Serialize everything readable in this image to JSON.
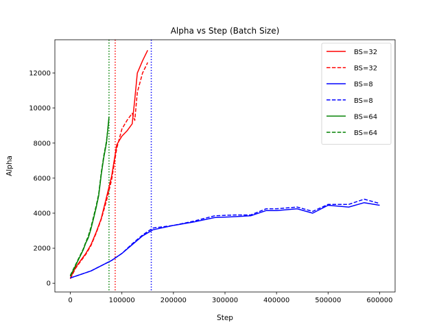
{
  "chart_data": {
    "type": "line",
    "title": "Alpha vs Step (Batch Size)",
    "xlabel": "Step",
    "ylabel": "Alpha",
    "xlim": [
      -30000,
      630000
    ],
    "ylim": [
      -500,
      13900
    ],
    "xticks": [
      0,
      100000,
      200000,
      300000,
      400000,
      500000,
      600000
    ],
    "xtick_labels": [
      "0",
      "100000",
      "200000",
      "300000",
      "400000",
      "500000",
      "600000"
    ],
    "yticks": [
      0,
      2000,
      4000,
      6000,
      8000,
      10000,
      12000
    ],
    "ytick_labels": [
      "0",
      "2000",
      "4000",
      "6000",
      "8000",
      "10000",
      "12000"
    ],
    "grid": false,
    "legend_position": "top-right",
    "series": [
      {
        "name": "BS=32",
        "color": "#ff0000",
        "style": "solid",
        "x": [
          0,
          10000,
          20000,
          30000,
          40000,
          50000,
          60000,
          70000,
          80000,
          90000,
          100000,
          110000,
          120000,
          125000,
          130000,
          140000,
          150000
        ],
        "y": [
          300,
          900,
          1300,
          1700,
          2200,
          2900,
          3700,
          4900,
          6100,
          7900,
          8400,
          8700,
          9100,
          10500,
          12000,
          12700,
          13300
        ]
      },
      {
        "name": "BS=32",
        "color": "#ff0000",
        "style": "dashed",
        "x": [
          0,
          10000,
          20000,
          30000,
          40000,
          50000,
          60000,
          70000,
          80000,
          90000,
          100000,
          110000,
          120000,
          125000,
          130000,
          140000,
          150000
        ],
        "y": [
          250,
          850,
          1250,
          1650,
          2150,
          2850,
          3650,
          4700,
          5900,
          7700,
          8800,
          9300,
          9700,
          9300,
          10900,
          12000,
          12600
        ]
      },
      {
        "name": "BS=8",
        "color": "#0000ff",
        "style": "solid",
        "x": [
          0,
          40000,
          80000,
          100000,
          120000,
          140000,
          160000,
          200000,
          240000,
          280000,
          320000,
          350000,
          380000,
          400000,
          440000,
          470000,
          500000,
          540000,
          570000,
          600000
        ],
        "y": [
          300,
          700,
          1300,
          1700,
          2200,
          2700,
          3050,
          3300,
          3500,
          3750,
          3800,
          3850,
          4150,
          4150,
          4250,
          4000,
          4450,
          4350,
          4600,
          4450
        ]
      },
      {
        "name": "BS=8",
        "color": "#0000ff",
        "style": "dashed",
        "x": [
          0,
          40000,
          80000,
          100000,
          120000,
          140000,
          160000,
          200000,
          240000,
          280000,
          320000,
          350000,
          380000,
          400000,
          440000,
          470000,
          500000,
          540000,
          570000,
          600000
        ],
        "y": [
          300,
          700,
          1300,
          1700,
          2250,
          2750,
          3150,
          3300,
          3550,
          3850,
          3900,
          3900,
          4250,
          4250,
          4350,
          4100,
          4500,
          4500,
          4800,
          4550
        ]
      },
      {
        "name": "BS=64",
        "color": "#008000",
        "style": "solid",
        "x": [
          0,
          5000,
          10000,
          15000,
          20000,
          25000,
          30000,
          35000,
          40000,
          45000,
          50000,
          55000,
          60000,
          65000,
          70000,
          75000
        ],
        "y": [
          400,
          700,
          1000,
          1300,
          1600,
          1900,
          2300,
          2600,
          3100,
          3700,
          4300,
          5000,
          6200,
          7200,
          8000,
          9500
        ]
      },
      {
        "name": "BS=64",
        "color": "#008000",
        "style": "dashed",
        "x": [
          0,
          5000,
          10000,
          15000,
          20000,
          25000,
          30000,
          35000,
          40000,
          45000,
          50000,
          55000,
          60000,
          65000,
          70000,
          75000
        ],
        "y": [
          450,
          750,
          1050,
          1350,
          1650,
          1950,
          2350,
          2700,
          3200,
          3800,
          4400,
          5100,
          6300,
          7300,
          8100,
          9400
        ]
      }
    ],
    "vlines": [
      {
        "x": 75000,
        "color": "#008000",
        "style": "dotted"
      },
      {
        "x": 87000,
        "color": "#ff0000",
        "style": "dotted"
      },
      {
        "x": 157000,
        "color": "#0000ff",
        "style": "dotted"
      }
    ]
  }
}
